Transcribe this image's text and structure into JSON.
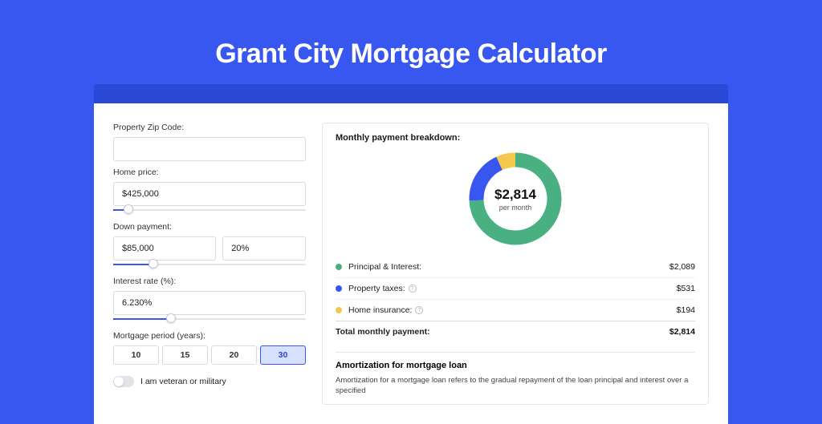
{
  "page": {
    "title": "Grant City Mortgage Calculator",
    "background_color": "#3857f0",
    "bar_color": "#2a49d6",
    "card_bg": "#ffffff"
  },
  "form": {
    "zip": {
      "label": "Property Zip Code:",
      "value": ""
    },
    "home_price": {
      "label": "Home price:",
      "value": "$425,000",
      "slider_pct": 8
    },
    "down_payment": {
      "label": "Down payment:",
      "value": "$85,000",
      "pct_value": "20%",
      "slider_pct": 21
    },
    "interest": {
      "label": "Interest rate (%):",
      "value": "6.230%",
      "slider_pct": 30
    },
    "period": {
      "label": "Mortgage period (years):",
      "options": [
        "10",
        "15",
        "20",
        "30"
      ],
      "selected": "30"
    },
    "veteran": {
      "label": "I am veteran or military",
      "checked": false
    }
  },
  "breakdown": {
    "title": "Monthly payment breakdown:",
    "donut": {
      "value": "$2,814",
      "sub": "per month",
      "slices": [
        {
          "name": "principal_interest",
          "color": "#49b082",
          "pct": 74.2
        },
        {
          "name": "property_taxes",
          "color": "#3857f0",
          "pct": 18.9
        },
        {
          "name": "home_insurance",
          "color": "#f2c94c",
          "pct": 6.9
        }
      ],
      "stroke_width": 18,
      "bg_color": "#ffffff"
    },
    "rows": [
      {
        "dot": "#49b082",
        "label": "Principal & Interest:",
        "info": false,
        "value": "$2,089"
      },
      {
        "dot": "#3857f0",
        "label": "Property taxes:",
        "info": true,
        "value": "$531"
      },
      {
        "dot": "#f2c94c",
        "label": "Home insurance:",
        "info": true,
        "value": "$194"
      }
    ],
    "total": {
      "label": "Total monthly payment:",
      "value": "$2,814"
    }
  },
  "amortization": {
    "title": "Amortization for mortgage loan",
    "text": "Amortization for a mortgage loan refers to the gradual repayment of the loan principal and interest over a specified"
  }
}
